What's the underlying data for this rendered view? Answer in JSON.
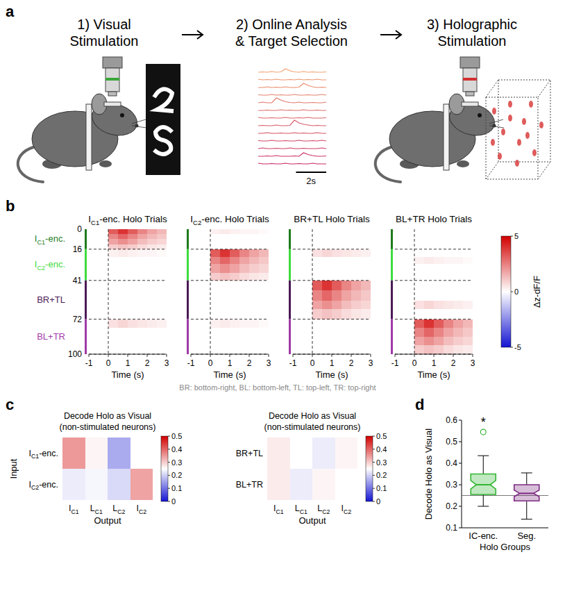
{
  "panel_a": {
    "letter": "a",
    "steps": [
      "1) Visual Stimulation",
      "2) Online Analysis & Target Selection",
      "3) Holographic Stimulation"
    ],
    "traces": {
      "dt": 0.3,
      "values": [
        [
          0.1,
          0.15,
          0.1,
          0.2,
          0.1,
          0.15,
          0.6,
          0.3,
          0.15,
          0.1,
          0.2,
          0.1,
          0.15,
          0.1,
          0.1,
          0.15
        ],
        [
          0.2,
          0.1,
          0.15,
          0.1,
          0.2,
          0.1,
          0.1,
          0.15,
          0.1,
          0.2,
          0.1,
          0.15,
          0.1,
          0.2,
          0.1,
          0.1
        ],
        [
          0.1,
          0.1,
          0.2,
          0.1,
          0.15,
          0.1,
          0.2,
          0.1,
          0.1,
          0.15,
          0.7,
          0.4,
          0.2,
          0.1,
          0.15,
          0.1
        ],
        [
          0.15,
          0.1,
          0.1,
          0.2,
          0.1,
          0.15,
          0.1,
          0.1,
          0.2,
          0.1,
          0.1,
          0.15,
          0.1,
          0.1,
          0.2,
          0.1
        ],
        [
          0.1,
          0.2,
          0.1,
          0.1,
          0.8,
          0.5,
          0.25,
          0.15,
          0.1,
          0.2,
          0.1,
          0.1,
          0.15,
          0.1,
          0.1,
          0.2
        ],
        [
          0.1,
          0.1,
          0.15,
          0.1,
          0.1,
          0.2,
          0.1,
          0.15,
          0.1,
          0.1,
          0.2,
          0.1,
          0.1,
          0.15,
          0.1,
          0.1
        ],
        [
          0.2,
          0.1,
          0.1,
          0.15,
          0.1,
          0.1,
          0.2,
          0.1,
          0.1,
          0.15,
          0.1,
          0.2,
          0.1,
          0.1,
          0.1,
          0.15
        ],
        [
          0.1,
          0.15,
          0.1,
          0.1,
          0.2,
          0.1,
          0.1,
          0.15,
          0.9,
          0.5,
          0.3,
          0.2,
          0.1,
          0.15,
          0.1,
          0.1
        ],
        [
          0.1,
          0.1,
          0.2,
          0.1,
          0.1,
          0.15,
          0.1,
          0.1,
          0.2,
          0.1,
          0.15,
          0.1,
          0.1,
          0.2,
          0.1,
          0.1
        ],
        [
          0.15,
          0.1,
          0.1,
          0.2,
          0.1,
          0.1,
          0.15,
          0.1,
          0.1,
          0.2,
          0.1,
          0.1,
          0.15,
          0.1,
          0.2,
          0.1
        ],
        [
          0.1,
          0.2,
          0.1,
          0.1,
          0.15,
          0.1,
          0.1,
          0.2,
          0.1,
          0.1,
          0.15,
          0.1,
          0.1,
          0.1,
          0.2,
          0.1
        ],
        [
          0.1,
          0.1,
          0.15,
          0.1,
          0.2,
          0.1,
          0.1,
          0.1,
          0.15,
          0.1,
          0.6,
          0.35,
          0.2,
          0.1,
          0.1,
          0.15
        ],
        [
          0.2,
          0.1,
          0.1,
          0.15,
          0.1,
          0.1,
          0.2,
          0.1,
          0.1,
          0.15,
          0.1,
          0.1,
          0.2,
          0.1,
          0.1,
          0.1
        ]
      ],
      "scale_bar": {
        "value": 2,
        "label": "2s"
      }
    }
  },
  "chart_data": [
    {
      "type": "heatmap",
      "panel": "b",
      "subplots": [
        {
          "title": "IC1-enc. Holo Trials",
          "cells": [
            [
              0,
              0,
              3.2,
              4,
              3.2,
              2.4,
              1.8,
              1.4
            ],
            [
              0,
              0,
              2.4,
              3,
              2.4,
              1.8,
              1.4,
              1.1
            ],
            [
              0,
              0,
              1.8,
              2.2,
              1.8,
              1.3,
              1,
              0.8
            ],
            [
              0,
              0,
              1,
              1.2,
              1,
              0.7,
              0.5,
              0.4
            ],
            [
              0,
              0,
              0.3,
              0.4,
              0.3,
              0.2,
              0.2,
              0.1
            ],
            [
              0,
              0,
              0,
              0,
              0,
              0,
              0,
              0
            ],
            [
              0,
              0,
              0,
              0,
              0,
              0,
              0,
              0
            ],
            [
              0,
              0,
              0,
              0,
              0,
              0,
              0,
              0
            ],
            [
              0,
              0,
              0,
              0,
              0,
              0,
              0,
              0
            ],
            [
              0,
              0,
              0,
              0,
              0,
              0,
              0,
              0
            ],
            [
              0,
              0,
              0,
              0,
              0,
              0,
              0,
              0
            ],
            [
              0,
              0,
              0,
              0,
              0,
              0,
              0,
              0
            ],
            [
              0,
              0,
              0.6,
              0.8,
              0.6,
              0.5,
              0.4,
              0.3
            ],
            [
              0,
              0,
              0,
              0,
              0,
              0,
              0,
              0
            ],
            [
              0,
              0,
              0,
              0,
              0,
              0,
              0,
              0
            ],
            [
              0,
              0,
              0,
              0,
              0,
              0,
              0,
              0
            ]
          ]
        },
        {
          "title": "IC2-enc. Holo Trials",
          "cells": [
            [
              0,
              0,
              0.3,
              0.4,
              0.3,
              0.2,
              0.2,
              0.1
            ],
            [
              0,
              0,
              0,
              0,
              0,
              0,
              0,
              0
            ],
            [
              0,
              0,
              0,
              0,
              0,
              0,
              0,
              0
            ],
            [
              0,
              0,
              0,
              0,
              0,
              0,
              0,
              0
            ],
            [
              0,
              0,
              3.2,
              4,
              3.2,
              2.4,
              1.8,
              1.4
            ],
            [
              0,
              0,
              2.4,
              3,
              2.4,
              1.8,
              1.4,
              1.1
            ],
            [
              0,
              0,
              1.8,
              2.2,
              1.8,
              1.3,
              1,
              0.8
            ],
            [
              0,
              0,
              1,
              1.2,
              1,
              0.7,
              0.5,
              0.4
            ],
            [
              0,
              0,
              0,
              0,
              0,
              0,
              0,
              0
            ],
            [
              0,
              0,
              0,
              0,
              0,
              0,
              0,
              0
            ],
            [
              0,
              0,
              0,
              0,
              0,
              0,
              0,
              0
            ],
            [
              0,
              0,
              0,
              0,
              0,
              0,
              0,
              0
            ],
            [
              0,
              0,
              0.3,
              0.4,
              0.3,
              0.2,
              0.2,
              0.1
            ],
            [
              0,
              0,
              0,
              0,
              0,
              0,
              0,
              0
            ],
            [
              0,
              0,
              0,
              0,
              0,
              0,
              0,
              0
            ],
            [
              0,
              0,
              0,
              0,
              0,
              0,
              0,
              0
            ]
          ]
        },
        {
          "title": "BR+TL Holo Trials",
          "cells": [
            [
              0,
              0,
              0,
              0,
              0,
              0,
              0,
              0
            ],
            [
              0,
              0,
              0,
              0,
              0,
              0,
              0,
              0
            ],
            [
              0,
              0,
              0,
              0,
              0,
              0,
              0,
              0
            ],
            [
              0,
              0,
              0,
              0,
              0,
              0,
              0,
              0
            ],
            [
              0,
              0,
              0.6,
              0.8,
              0.6,
              0.5,
              0.4,
              0.3
            ],
            [
              0,
              0,
              0,
              0,
              0,
              0,
              0,
              0
            ],
            [
              0,
              0,
              0,
              0,
              0,
              0,
              0,
              0
            ],
            [
              0,
              0,
              0,
              0,
              0,
              0,
              0,
              0
            ],
            [
              0,
              0,
              3.2,
              4,
              3.2,
              2.4,
              1.8,
              1.4
            ],
            [
              0,
              0,
              2.4,
              3,
              2.4,
              1.8,
              1.4,
              1.1
            ],
            [
              0,
              0,
              1.8,
              2.2,
              1.8,
              1.3,
              1,
              0.8
            ],
            [
              0,
              0,
              1,
              1.2,
              1,
              0.7,
              0.5,
              0.4
            ],
            [
              0,
              0,
              0,
              0,
              0,
              0,
              0,
              0
            ],
            [
              0,
              0,
              0,
              0,
              0,
              0,
              0,
              0
            ],
            [
              0,
              0,
              0,
              0,
              0,
              0,
              0,
              0
            ],
            [
              0,
              0,
              0,
              0,
              0,
              0,
              0,
              0
            ]
          ]
        },
        {
          "title": "BL+TR Holo Trials",
          "cells": [
            [
              0,
              0,
              0,
              0,
              0,
              0,
              0,
              0
            ],
            [
              0,
              0,
              0,
              0,
              0,
              0,
              0,
              0
            ],
            [
              0,
              0,
              0,
              0,
              0,
              0,
              0,
              0
            ],
            [
              0,
              0,
              0,
              0,
              0,
              0,
              0,
              0
            ],
            [
              0,
              0,
              0,
              0,
              0,
              0,
              0,
              0
            ],
            [
              0,
              0,
              0.3,
              0.4,
              0.3,
              0.2,
              0.2,
              0.1
            ],
            [
              0,
              0,
              0,
              0,
              0,
              0,
              0,
              0
            ],
            [
              0,
              0,
              0,
              0,
              0,
              0,
              0,
              0
            ],
            [
              0,
              0,
              0,
              0,
              0,
              0,
              0,
              0
            ],
            [
              0,
              0,
              0,
              0,
              0,
              0,
              0,
              0
            ],
            [
              0,
              0,
              0.6,
              0.8,
              0.6,
              0.5,
              0.4,
              0.3
            ],
            [
              0,
              0,
              0,
              0,
              0,
              0,
              0,
              0
            ],
            [
              0,
              0,
              3.2,
              4,
              3.2,
              2.4,
              1.8,
              1.4
            ],
            [
              0,
              0,
              2.4,
              3,
              2.4,
              1.8,
              1.4,
              1.1
            ],
            [
              0,
              0,
              1.8,
              2.2,
              1.8,
              1.3,
              1,
              0.8
            ],
            [
              0,
              0,
              1,
              1.2,
              1,
              0.7,
              0.5,
              0.4
            ]
          ]
        }
      ],
      "row_edges": [
        0,
        4,
        8,
        12,
        16,
        22,
        28,
        35,
        41,
        49,
        57,
        64,
        72,
        79,
        86,
        93,
        100
      ],
      "col_edges": [
        -1,
        -0.5,
        0,
        0.5,
        1,
        1.5,
        2,
        2.5,
        3
      ],
      "xlim": [
        -1,
        3
      ],
      "xticks": [
        -1,
        0,
        1,
        2,
        3
      ],
      "x_label": "Time (s)",
      "ylim": [
        0,
        100
      ],
      "yticks": [
        0,
        16,
        41,
        72,
        100
      ],
      "stim_time": 0,
      "groups": [
        {
          "name": "IC1-enc.",
          "start": 0,
          "end": 16,
          "color": "#1e7b1e"
        },
        {
          "name": "IC2-enc.",
          "start": 16,
          "end": 41,
          "color": "#3ddc3d"
        },
        {
          "name": "BR+TL",
          "start": 41,
          "end": 72,
          "color": "#4b1a55"
        },
        {
          "name": "BL+TR",
          "start": 72,
          "end": 100,
          "color": "#a03aa8"
        }
      ],
      "colorbar": {
        "range": [
          -5,
          5
        ],
        "ticks": [
          -5,
          0,
          5
        ],
        "label": "Δz-dF/F"
      },
      "caption": "BR: bottom-right, BL: bottom-left, TL: top-left, TR: top-right"
    },
    {
      "type": "heatmap",
      "panel": "c",
      "subplots": [
        {
          "title": "Decode Holo as Visual",
          "subtitle": "(non-stimulated neurons)",
          "y_label": "Input",
          "rows": [
            "IC1-enc.",
            "IC2-enc."
          ],
          "cells": [
            [
              0.35,
              0.26,
              0.16,
              0.25
            ],
            [
              0.23,
              0.24,
              0.21,
              0.34
            ]
          ]
        },
        {
          "title": "Decode Holo as Visual",
          "subtitle": "(non-stimulated neurons)",
          "rows": [
            "BR+TL",
            "BL+TR"
          ],
          "cells": [
            [
              0.27,
              0.25,
              0.23,
              0.26
            ],
            [
              0.27,
              0.23,
              0.26,
              0.25
            ]
          ]
        }
      ],
      "columns": [
        "IC1",
        "LC1",
        "LC2",
        "IC2"
      ],
      "x_label": "Output",
      "colorbar": {
        "range": [
          0,
          0.5
        ],
        "ticks": [
          0,
          0.1,
          0.2,
          0.3,
          0.4,
          0.5
        ]
      }
    },
    {
      "type": "box",
      "panel": "d",
      "y_label": "Decode Holo as Visual",
      "x_label": "Holo Groups",
      "categories": [
        "IC-enc.",
        "Seg."
      ],
      "ylim": [
        0.1,
        0.6
      ],
      "yticks": [
        0.1,
        0.2,
        0.3,
        0.4,
        0.5,
        0.6
      ],
      "reference_line": 0.25,
      "boxes": [
        {
          "whisker_low": 0.2,
          "q1": 0.255,
          "median": 0.3,
          "q3": 0.35,
          "whisker_high": 0.435,
          "notch_low": 0.28,
          "notch_high": 0.32,
          "outliers": [
            0.545
          ],
          "color": "#33b533"
        },
        {
          "whisker_low": 0.14,
          "q1": 0.225,
          "median": 0.26,
          "q3": 0.3,
          "whisker_high": 0.355,
          "notch_low": 0.245,
          "notch_high": 0.275,
          "outliers": [],
          "color": "#7d2a82"
        }
      ],
      "annotations": [
        {
          "text": "*",
          "category": 0
        }
      ]
    }
  ]
}
